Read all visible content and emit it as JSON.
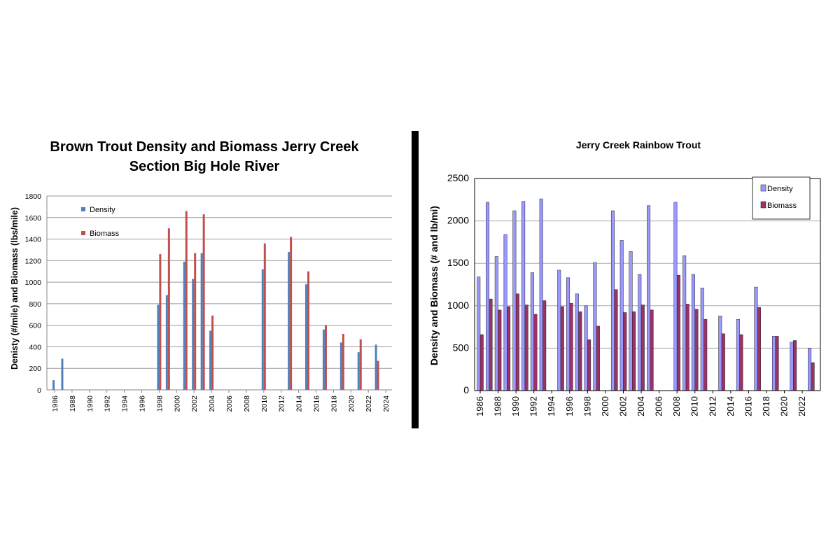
{
  "chart_data": [
    {
      "type": "bar",
      "title_lines": [
        "Brown Trout Density and Biomass Jerry Creek",
        "Section Big Hole River"
      ],
      "xlabel": "",
      "ylabel": "Denisty (#/mile) and Biomass (lbs/mile)",
      "ylim": [
        0,
        1800
      ],
      "yticks": [
        0,
        200,
        400,
        600,
        800,
        1000,
        1200,
        1400,
        1600,
        1800
      ],
      "xlim": [
        1986,
        2024
      ],
      "xticks": [
        1986,
        1988,
        1990,
        1992,
        1994,
        1996,
        1998,
        2000,
        2002,
        2004,
        2006,
        2008,
        2010,
        2012,
        2014,
        2016,
        2018,
        2020,
        2022,
        2024
      ],
      "grid": true,
      "legend_position": "top-left",
      "series": [
        {
          "name": "Density",
          "color": "#4f81bd",
          "points": [
            [
              1986,
              90
            ],
            [
              1987,
              290
            ],
            [
              1998,
              790
            ],
            [
              1999,
              880
            ],
            [
              2001,
              1190
            ],
            [
              2002,
              1030
            ],
            [
              2003,
              1270
            ],
            [
              2004,
              550
            ],
            [
              2010,
              1120
            ],
            [
              2013,
              1280
            ],
            [
              2015,
              980
            ],
            [
              2017,
              560
            ],
            [
              2019,
              440
            ],
            [
              2021,
              350
            ],
            [
              2023,
              420
            ]
          ]
        },
        {
          "name": "Biomass",
          "color": "#c0504d",
          "points": [
            [
              1998,
              1260
            ],
            [
              1999,
              1500
            ],
            [
              2001,
              1660
            ],
            [
              2002,
              1270
            ],
            [
              2003,
              1630
            ],
            [
              2004,
              690
            ],
            [
              2010,
              1360
            ],
            [
              2013,
              1420
            ],
            [
              2015,
              1100
            ],
            [
              2017,
              600
            ],
            [
              2019,
              520
            ],
            [
              2021,
              470
            ],
            [
              2023,
              270
            ]
          ]
        }
      ]
    },
    {
      "type": "bar",
      "title": "Jerry Creek Rainbow Trout",
      "xlabel": "",
      "ylabel": "Density and Biomass (# and lb/mi)",
      "ylim": [
        0,
        2500
      ],
      "yticks": [
        0,
        500,
        1000,
        1500,
        2000,
        2500
      ],
      "xlim": [
        1986,
        2023
      ],
      "xticks": [
        1986,
        1988,
        1990,
        1992,
        1994,
        1996,
        1998,
        2000,
        2002,
        2004,
        2006,
        2008,
        2010,
        2012,
        2014,
        2016,
        2018,
        2020,
        2022
      ],
      "grid": true,
      "legend_position": "top-right",
      "series": [
        {
          "name": "Density",
          "color": "#9999ff",
          "points": [
            [
              1986,
              1340
            ],
            [
              1987,
              2220
            ],
            [
              1988,
              1580
            ],
            [
              1989,
              1840
            ],
            [
              1990,
              2120
            ],
            [
              1991,
              2230
            ],
            [
              1992,
              1390
            ],
            [
              1993,
              2260
            ],
            [
              1995,
              1420
            ],
            [
              1996,
              1330
            ],
            [
              1997,
              1140
            ],
            [
              1998,
              1000
            ],
            [
              1999,
              1510
            ],
            [
              2001,
              2120
            ],
            [
              2002,
              1770
            ],
            [
              2003,
              1640
            ],
            [
              2004,
              1370
            ],
            [
              2005,
              2180
            ],
            [
              2008,
              2220
            ],
            [
              2009,
              1590
            ],
            [
              2010,
              1370
            ],
            [
              2011,
              1210
            ],
            [
              2013,
              880
            ],
            [
              2015,
              840
            ],
            [
              2017,
              1220
            ],
            [
              2019,
              640
            ],
            [
              2021,
              570
            ],
            [
              2023,
              500
            ]
          ]
        },
        {
          "name": "Biomass",
          "color": "#993366",
          "points": [
            [
              1986,
              660
            ],
            [
              1987,
              1080
            ],
            [
              1988,
              950
            ],
            [
              1989,
              990
            ],
            [
              1990,
              1140
            ],
            [
              1991,
              1010
            ],
            [
              1992,
              900
            ],
            [
              1993,
              1060
            ],
            [
              1995,
              990
            ],
            [
              1996,
              1030
            ],
            [
              1997,
              930
            ],
            [
              1998,
              600
            ],
            [
              1999,
              760
            ],
            [
              2001,
              1190
            ],
            [
              2002,
              920
            ],
            [
              2003,
              930
            ],
            [
              2004,
              1010
            ],
            [
              2005,
              950
            ],
            [
              2008,
              1360
            ],
            [
              2009,
              1020
            ],
            [
              2010,
              960
            ],
            [
              2011,
              840
            ],
            [
              2013,
              670
            ],
            [
              2015,
              660
            ],
            [
              2017,
              980
            ],
            [
              2019,
              640
            ],
            [
              2021,
              590
            ],
            [
              2023,
              330
            ]
          ]
        }
      ]
    }
  ]
}
